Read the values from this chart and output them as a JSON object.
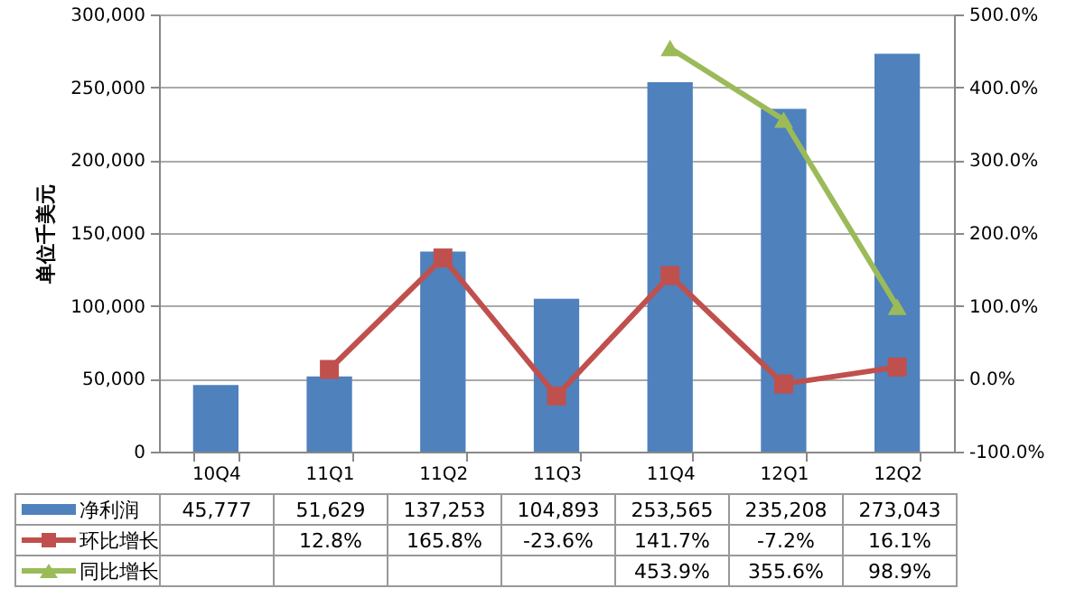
{
  "chart_data": {
    "type": "bar",
    "ylabel": "单位千美元",
    "categories": [
      "10Q4",
      "11Q1",
      "11Q2",
      "11Q3",
      "11Q4",
      "12Q1",
      "12Q2"
    ],
    "series": [
      {
        "name": "净利润",
        "color": "#4f81bd",
        "values": [
          45777,
          51629,
          137253,
          104893,
          253565,
          235208,
          273043
        ],
        "value_labels": [
          "45,777",
          "51,629",
          "137,253",
          "104,893",
          "253,565",
          "235,208",
          "273,043"
        ]
      },
      {
        "name": "环比增长",
        "type": "line",
        "axis": "y2",
        "marker": "square",
        "color": "#c0504d",
        "values": [
          null,
          12.8,
          165.8,
          -23.6,
          141.7,
          -7.2,
          16.1
        ],
        "value_labels": [
          null,
          "12.8%",
          "165.8%",
          "-23.6%",
          "141.7%",
          "-7.2%",
          "16.1%"
        ]
      },
      {
        "name": "同比增长",
        "type": "line",
        "axis": "y2",
        "marker": "triangle",
        "color": "#9bbb59",
        "values": [
          null,
          null,
          null,
          null,
          453.9,
          355.6,
          98.9
        ],
        "value_labels": [
          null,
          null,
          null,
          null,
          "453.9%",
          "355.6%",
          "98.9%"
        ]
      }
    ],
    "ylim": [
      0,
      300000
    ],
    "yticks": [
      {
        "value": 0,
        "label": "0"
      },
      {
        "value": 50000,
        "label": "50,000"
      },
      {
        "value": 100000,
        "label": "100,000"
      },
      {
        "value": 150000,
        "label": "150,000"
      },
      {
        "value": 200000,
        "label": "200,000"
      },
      {
        "value": 250000,
        "label": "250,000"
      },
      {
        "value": 300000,
        "label": "300,000"
      }
    ],
    "y2lim": [
      -100,
      500
    ],
    "y2ticks": [
      {
        "value": -100,
        "label": "-100.0%"
      },
      {
        "value": 0,
        "label": "0.0%"
      },
      {
        "value": 100,
        "label": "100.0%"
      },
      {
        "value": 200,
        "label": "200.0%"
      },
      {
        "value": 300,
        "label": "300.0%"
      },
      {
        "value": 400,
        "label": "400.0%"
      },
      {
        "value": 500,
        "label": "500.0%"
      }
    ],
    "grid": "y",
    "legend": "bottom"
  }
}
